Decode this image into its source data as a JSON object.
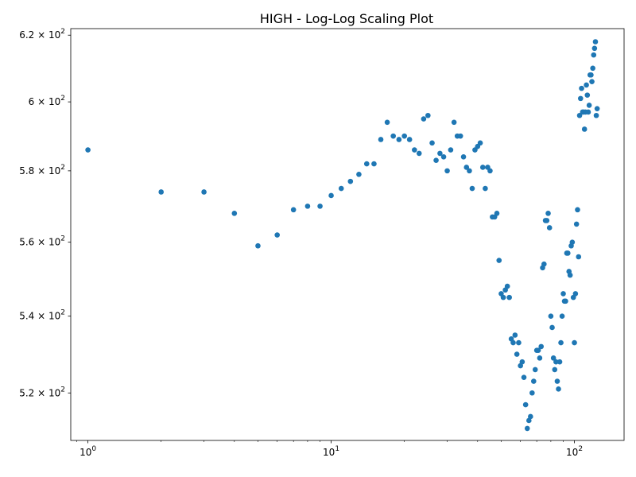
{
  "chart_data": {
    "type": "scatter",
    "title": "HIGH  - Log-Log Scaling Plot",
    "xlabel": "",
    "ylabel": "",
    "xscale": "log",
    "yscale": "log",
    "xlim": [
      0.85,
      160
    ],
    "ylim": [
      508,
      622
    ],
    "grid": false,
    "marker_color": "#1f77b4",
    "x_ticks": [
      {
        "value": 1,
        "base": "10",
        "exp": "0"
      },
      {
        "value": 10,
        "base": "10",
        "exp": "1"
      },
      {
        "value": 100,
        "base": "10",
        "exp": "2"
      }
    ],
    "y_ticks": [
      {
        "value": 520,
        "mantissa": "5.2 × 10",
        "exp": "2"
      },
      {
        "value": 540,
        "mantissa": "5.4 × 10",
        "exp": "2"
      },
      {
        "value": 560,
        "mantissa": "5.6 × 10",
        "exp": "2"
      },
      {
        "value": 580,
        "mantissa": "5.8 × 10",
        "exp": "2"
      },
      {
        "value": 600,
        "mantissa": "6 × 10",
        "exp": "2"
      },
      {
        "value": 620,
        "mantissa": "6.2 × 10",
        "exp": "2"
      }
    ],
    "x": [
      1,
      2,
      3,
      4,
      5,
      6,
      7,
      8,
      9,
      10,
      11,
      12,
      13,
      14,
      15,
      16,
      17,
      18,
      19,
      20,
      21,
      22,
      23,
      24,
      25,
      26,
      27,
      28,
      29,
      30,
      31,
      32,
      33,
      34,
      35,
      36,
      37,
      38,
      39,
      40,
      41,
      42,
      43,
      44,
      45,
      46,
      47,
      48,
      49,
      50,
      51,
      52,
      53,
      54,
      55,
      56,
      57,
      58,
      59,
      60,
      61,
      62,
      63,
      64,
      65,
      66,
      67,
      68,
      69,
      70,
      71,
      72,
      73,
      74,
      75,
      76,
      77,
      78,
      79,
      80,
      81,
      82,
      83,
      84,
      85,
      86,
      87,
      88,
      89,
      90,
      91,
      92,
      93,
      94,
      95,
      96,
      97,
      98,
      99,
      100,
      101,
      102,
      103,
      104,
      105,
      106,
      107,
      108,
      109,
      110,
      111,
      112,
      113,
      114,
      115,
      116,
      117,
      118,
      119,
      120,
      121,
      122,
      123,
      124
    ],
    "y": [
      586,
      574,
      574,
      568,
      559,
      562,
      569,
      570,
      570,
      573,
      575,
      577,
      579,
      582,
      582,
      589,
      594,
      590,
      589,
      590,
      589,
      586,
      585,
      595,
      596,
      588,
      583,
      585,
      584,
      580,
      586,
      594,
      590,
      590,
      584,
      581,
      580,
      575,
      586,
      587,
      588,
      581,
      575,
      581,
      580,
      567,
      567,
      568,
      555,
      546,
      545,
      547,
      548,
      545,
      534,
      533,
      535,
      530,
      533,
      527,
      528,
      524,
      517,
      511,
      513,
      514,
      520,
      523,
      526,
      531,
      531,
      529,
      532,
      553,
      554,
      566,
      566,
      568,
      564,
      540,
      537,
      529,
      526,
      528,
      523,
      521,
      528,
      533,
      540,
      546,
      544,
      544,
      557,
      557,
      552,
      551,
      559,
      560,
      545,
      533,
      546,
      565,
      569,
      556,
      596,
      601,
      604,
      597,
      597,
      592,
      597,
      605,
      602,
      597,
      599,
      608,
      608,
      606,
      610,
      614,
      616,
      618,
      596,
      598
    ]
  }
}
